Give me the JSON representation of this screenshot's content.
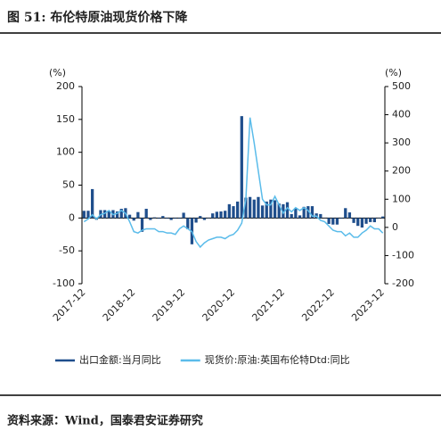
{
  "chart_data": {
    "type": "combo",
    "title": "图 51: 布伦特原油现货价格下降",
    "source": "资料来源：Wind，国泰君安证券研究",
    "y_label": "(%)",
    "y2_label": "(%)",
    "categories": [
      "2017-12",
      null,
      null,
      null,
      null,
      null,
      null,
      null,
      null,
      null,
      null,
      null,
      "2018-12",
      null,
      null,
      null,
      null,
      null,
      null,
      null,
      null,
      null,
      null,
      null,
      "2019-12",
      null,
      null,
      null,
      null,
      null,
      null,
      null,
      null,
      null,
      null,
      null,
      "2020-12",
      null,
      null,
      null,
      null,
      null,
      null,
      null,
      null,
      null,
      null,
      null,
      "2021-12",
      null,
      null,
      null,
      null,
      null,
      null,
      null,
      null,
      null,
      null,
      null,
      "2022-12",
      null,
      null,
      null,
      null,
      null,
      null,
      null,
      null,
      null,
      null,
      null,
      "2023-12"
    ],
    "ylim": [
      -100,
      200
    ],
    "yticks": [
      -100,
      -50,
      0,
      50,
      100,
      150,
      200
    ],
    "y2lim": [
      -200,
      500
    ],
    "y2ticks": [
      -200,
      -100,
      0,
      100,
      200,
      300,
      400,
      500
    ],
    "series": [
      {
        "name": "出口金额:当月同比",
        "type": "bar",
        "color": "#1f4e8c",
        "values": [
          10.9,
          11,
          44,
          -2.7,
          12,
          12,
          11,
          12,
          10,
          14,
          15,
          5,
          -4,
          9,
          -21,
          14,
          -3,
          1,
          -1,
          3,
          -1,
          -3,
          -1,
          -1,
          8,
          -17,
          -40,
          -7,
          3,
          -3,
          0.5,
          7,
          9.5,
          10,
          11,
          21,
          18,
          25,
          155,
          31,
          32,
          28,
          32,
          19,
          25,
          28,
          27,
          22,
          21,
          24,
          6,
          15,
          4,
          17,
          18,
          18,
          7,
          6,
          -0.3,
          -9,
          -10,
          -10,
          -1,
          15,
          8.5,
          -7.5,
          -12,
          -14.5,
          -8.8,
          -6.2,
          -6.4,
          0.5,
          2.3
        ]
      },
      {
        "name": "现货价:原油:英国布伦特Dtd:同比",
        "type": "line",
        "axis": "y2",
        "color": "#5bbcea",
        "values": [
          20,
          30,
          45,
          30,
          45,
          50,
          60,
          45,
          50,
          60,
          50,
          20,
          -15,
          -20,
          -10,
          -5,
          -5,
          -5,
          -15,
          -15,
          -20,
          -20,
          -25,
          -5,
          5,
          -5,
          -15,
          -50,
          -70,
          -55,
          -45,
          -40,
          -35,
          -35,
          -40,
          -30,
          -25,
          -10,
          15,
          100,
          390,
          300,
          200,
          100,
          80,
          80,
          110,
          80,
          50,
          70,
          55,
          70,
          60,
          70,
          60,
          40,
          40,
          25,
          20,
          5,
          -10,
          -15,
          -15,
          -30,
          -20,
          -35,
          -35,
          -20,
          -10,
          5,
          -5,
          -5,
          -20
        ]
      }
    ]
  }
}
